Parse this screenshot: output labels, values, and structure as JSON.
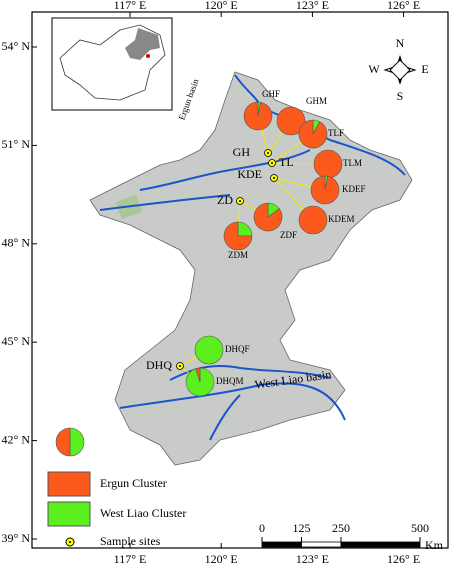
{
  "lon_ticks": [
    {
      "value": 117,
      "label": "117° E"
    },
    {
      "value": 120,
      "label": "120° E"
    },
    {
      "value": 123,
      "label": "123° E"
    },
    {
      "value": 126,
      "label": "126° E"
    }
  ],
  "lat_ticks": [
    {
      "value": 54,
      "label": "54° N"
    },
    {
      "value": 51,
      "label": "51° N"
    },
    {
      "value": 48,
      "label": "48° N"
    },
    {
      "value": 45,
      "label": "45° N"
    },
    {
      "value": 42,
      "label": "42° N"
    },
    {
      "value": 39,
      "label": "39° N"
    }
  ],
  "compass": {
    "n": "N",
    "s": "S",
    "e": "E",
    "w": "W"
  },
  "basins": [
    "Ergun basin",
    "West Liao basin"
  ],
  "sites": [
    "GH",
    "TL",
    "KDE",
    "ZD",
    "DHQ"
  ],
  "pies": [
    {
      "label": "GHF",
      "ergun": 97,
      "west_liao": 3
    },
    {
      "label": "GHM",
      "ergun": 100,
      "west_liao": 0
    },
    {
      "label": "TLF",
      "ergun": 92,
      "west_liao": 8
    },
    {
      "label": "TLM",
      "ergun": 100,
      "west_liao": 0
    },
    {
      "label": "KDEF",
      "ergun": 97,
      "west_liao": 3
    },
    {
      "label": "KDEM",
      "ergun": 100,
      "west_liao": 0
    },
    {
      "label": "ZDF",
      "ergun": 85,
      "west_liao": 15
    },
    {
      "label": "ZDM",
      "ergun": 75,
      "west_liao": 25
    },
    {
      "label": "DHQF",
      "ergun": 0,
      "west_liao": 100
    },
    {
      "label": "DHQM",
      "ergun": 5,
      "west_liao": 95
    }
  ],
  "legend": {
    "example": {
      "ergun": 50,
      "west_liao": 50
    },
    "items": [
      {
        "label": "Ergun Cluster",
        "color": "#fb5a1c"
      },
      {
        "label": "West Liao Cluster",
        "color": "#5cef1e"
      },
      {
        "label": "Sample sites"
      }
    ]
  },
  "scale": {
    "ticks": [
      0,
      125,
      250,
      500
    ],
    "unit": "Km"
  }
}
